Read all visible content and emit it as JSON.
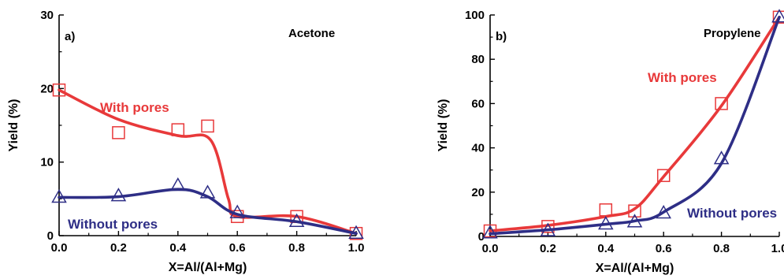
{
  "colors": {
    "with_pores": "#e8393a",
    "without_pores": "#2e2e86",
    "axis": "#000000"
  },
  "chart_data": [
    {
      "type": "line",
      "panel_label": "a)",
      "annotation": "Acetone",
      "xlabel": "X=Al/(Al+Mg)",
      "ylabel": "Yield (%)",
      "xlim": [
        0.0,
        1.0
      ],
      "ylim": [
        0,
        30
      ],
      "xticks": [
        "0.0",
        "0.2",
        "0.4",
        "0.6",
        "0.8",
        "1.0"
      ],
      "yticks": [
        "0",
        "10",
        "20",
        "30"
      ],
      "grid": false,
      "series": [
        {
          "name": "With pores",
          "marker": "square",
          "color": "#e8393a",
          "x": [
            0.0,
            0.2,
            0.4,
            0.5,
            0.6,
            0.8,
            1.0
          ],
          "y": [
            19.8,
            14.0,
            14.4,
            14.9,
            2.6,
            2.6,
            0.3
          ]
        },
        {
          "name": "Without pores",
          "marker": "triangle",
          "color": "#2e2e86",
          "x": [
            0.0,
            0.2,
            0.4,
            0.5,
            0.6,
            0.8,
            1.0
          ],
          "y": [
            5.2,
            5.4,
            6.8,
            5.8,
            3.1,
            1.9,
            0.3
          ]
        }
      ]
    },
    {
      "type": "line",
      "panel_label": "b)",
      "annotation": "Propylene",
      "xlabel": "X=Al/(Al+Mg)",
      "ylabel": "Yield (%)",
      "xlim": [
        0.0,
        1.0
      ],
      "ylim": [
        0,
        100
      ],
      "xticks": [
        "0.0",
        "0.2",
        "0.4",
        "0.6",
        "0.8",
        "1.0"
      ],
      "yticks": [
        "0",
        "20",
        "40",
        "60",
        "80",
        "100"
      ],
      "grid": false,
      "series": [
        {
          "name": "With pores",
          "marker": "square",
          "color": "#e8393a",
          "x": [
            0.0,
            0.2,
            0.4,
            0.5,
            0.6,
            0.8,
            1.0
          ],
          "y": [
            2.5,
            4.5,
            12.0,
            11.5,
            27.5,
            60.0,
            99.0
          ]
        },
        {
          "name": "Without pores",
          "marker": "triangle",
          "color": "#2e2e86",
          "x": [
            0.0,
            0.2,
            0.4,
            0.5,
            0.6,
            0.8,
            1.0
          ],
          "y": [
            1.5,
            2.5,
            5.5,
            6.5,
            10.5,
            35.0,
            99.0
          ]
        }
      ]
    }
  ]
}
